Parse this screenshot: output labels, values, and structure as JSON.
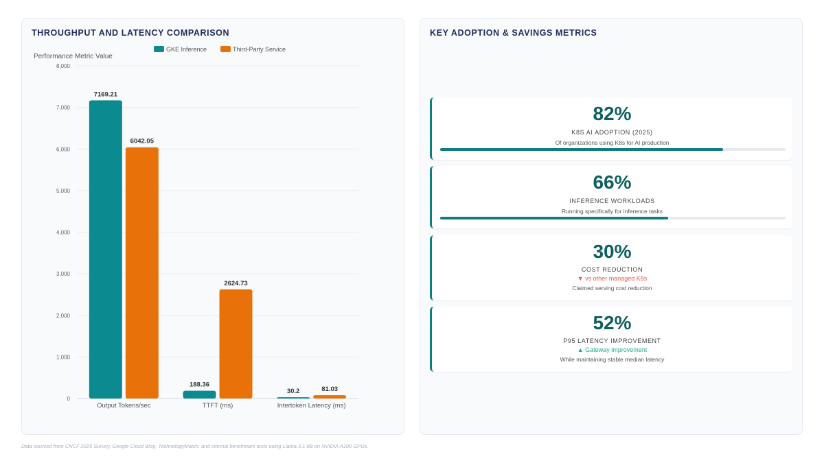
{
  "left_panel": {
    "title": "THROUGHPUT AND LATENCY COMPARISON"
  },
  "right_panel": {
    "title": "KEY ADOPTION & SAVINGS METRICS"
  },
  "chart_data": {
    "type": "bar",
    "ylabel": "Performance Metric Value",
    "ylim": [
      0,
      8000
    ],
    "yticks": [
      "0",
      "1,000",
      "2,000",
      "3,000",
      "4,000",
      "5,000",
      "6,000",
      "7,000",
      "8,000"
    ],
    "categories": [
      "Output Tokens/sec",
      "TTFT (ms)",
      "Intertoken Latency (ms)"
    ],
    "series": [
      {
        "name": "GKE Inference",
        "color": "#0b8a8f",
        "values": [
          7169.21,
          188.36,
          30.2
        ]
      },
      {
        "name": "Third-Party Service",
        "color": "#e8710a",
        "values": [
          6042.05,
          2624.73,
          81.03
        ]
      }
    ],
    "data_labels": [
      [
        "7169.21",
        "188.36",
        "30.2"
      ],
      [
        "6042.05",
        "2624.73",
        "81.03"
      ]
    ],
    "legend": "top-center",
    "grid": true
  },
  "metrics": [
    {
      "value": "82%",
      "label": "K8S AI ADOPTION (2025)",
      "description": "Of organizations using K8s for AI production",
      "progress": 0.82
    },
    {
      "value": "66%",
      "label": "INFERENCE WORKLOADS",
      "description": "Running specifically for inference tasks",
      "progress": 0.66
    },
    {
      "value": "30%",
      "label": "COST REDUCTION",
      "delta": "▼ vs other managed K8s",
      "delta_color": "#e0604a",
      "description": "Claimed serving cost reduction"
    },
    {
      "value": "52%",
      "label": "P95 LATENCY IMPROVEMENT",
      "delta": "▲ Gateway improvement",
      "delta_color": "#1aaa8a",
      "description": "While maintaining stable median latency"
    }
  ],
  "footnote": "Data sourced from CNCF 2025 Survey, Google Cloud Blog, TechnologyMatch, and internal benchmark tests using Llama 3.1 8B on NVIDIA A100 GPUs."
}
